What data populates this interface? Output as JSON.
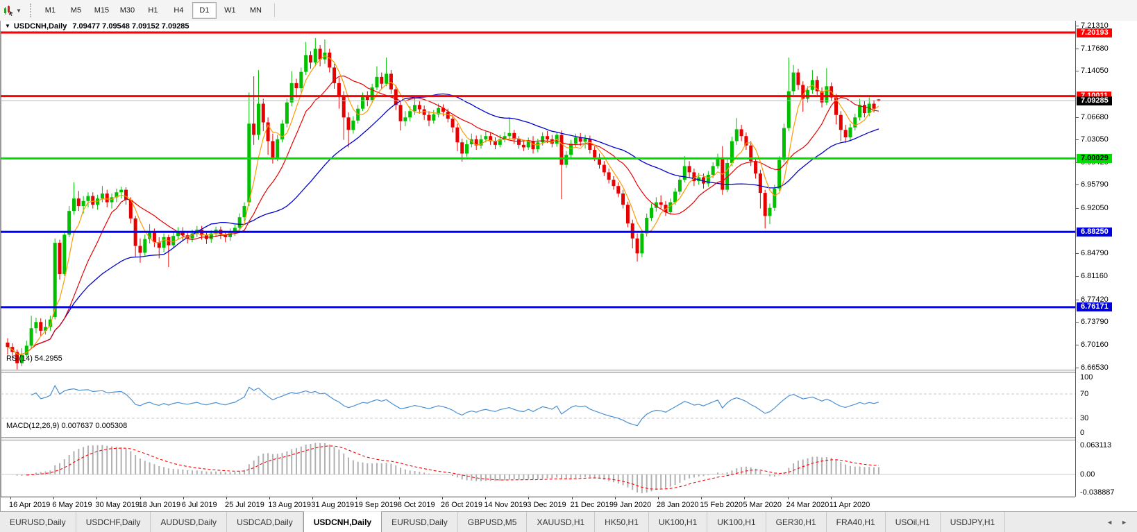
{
  "toolbar": {
    "tool_icon": "chart-cursor",
    "periods": [
      {
        "label": "M1",
        "active": false
      },
      {
        "label": "M5",
        "active": false
      },
      {
        "label": "M15",
        "active": false
      },
      {
        "label": "M30",
        "active": false
      },
      {
        "label": "H1",
        "active": false
      },
      {
        "label": "H4",
        "active": false
      },
      {
        "label": "D1",
        "active": true
      },
      {
        "label": "W1",
        "active": false
      },
      {
        "label": "MN",
        "active": false
      }
    ]
  },
  "caption": {
    "dropdown_glyph": "▼",
    "symbol": "USDCNH,Daily",
    "ohlc": "7.09477 7.09548 7.09152 7.09285"
  },
  "colors": {
    "bull": "#00c000",
    "bear": "#e60000",
    "ma_fast": "#ff9900",
    "ma_mid": "#e60000",
    "ma_slow": "#0000cc",
    "rsi_line": "#4a90d2",
    "rsi_level": "#c8c8c8",
    "macd_hist": "#b0b0b0",
    "macd_signal": "#ff0000",
    "level_red": "#ff0000",
    "level_green": "#00dd00",
    "level_blue": "#0000ff",
    "current_line": "#b8b8b8"
  },
  "price_axis": {
    "min_price": 6.655,
    "max_price": 7.2209,
    "labels": [
      "7.21310",
      "7.17680",
      "7.14050",
      "7.06680",
      "7.03050",
      "6.99420",
      "6.95790",
      "6.92050",
      "6.84790",
      "6.81160",
      "6.77420",
      "6.73790",
      "6.70160",
      "6.66530"
    ]
  },
  "badges": [
    {
      "text": "7.20193",
      "price": 7.20193,
      "bg": "#ff0000",
      "fg": "#ffffff"
    },
    {
      "text": "7.10011",
      "price": 7.10011,
      "bg": "#ff0000",
      "fg": "#ffffff"
    },
    {
      "text": "7.09285",
      "price": 7.09285,
      "bg": "#000000",
      "fg": "#ffffff"
    },
    {
      "text": "7.00029",
      "price": 7.00029,
      "bg": "#00dd00",
      "fg": "#000000"
    },
    {
      "text": "6.88250",
      "price": 6.8825,
      "bg": "#0000dd",
      "fg": "#ffffff"
    },
    {
      "text": "6.76171",
      "price": 6.76171,
      "bg": "#0000dd",
      "fg": "#ffffff"
    }
  ],
  "hlines": [
    {
      "name": "resistance-upper",
      "price": 7.20193,
      "color": "#ff0000",
      "w": 3
    },
    {
      "name": "resistance-7.10",
      "price": 7.10011,
      "color": "#ff0000",
      "w": 3
    },
    {
      "name": "current-price",
      "price": 7.09285,
      "color": "#b8b8b8",
      "w": 1
    },
    {
      "name": "pivot-7.00",
      "price": 7.00029,
      "color": "#00dd00",
      "w": 3
    },
    {
      "name": "support-6.88",
      "price": 6.8825,
      "color": "#0000ff",
      "w": 3
    },
    {
      "name": "support-6.76",
      "price": 6.76171,
      "color": "#0000ff",
      "w": 3
    }
  ],
  "rsi": {
    "label": "RSI(14) 54.2955",
    "period": 14,
    "axis_labels": [
      {
        "text": "100",
        "v": 100
      },
      {
        "text": "70",
        "v": 70
      },
      {
        "text": "30",
        "v": 30
      },
      {
        "text": "0",
        "v": 0
      }
    ],
    "dashed_levels": [
      70,
      30
    ]
  },
  "macd": {
    "label": "MACD(12,26,9) 0.007637 0.005308",
    "axis_labels": [
      {
        "text": "0.063113",
        "v": 0.063113
      },
      {
        "text": "0.00",
        "v": 0
      },
      {
        "text": "-0.038887",
        "v": -0.038887
      }
    ]
  },
  "date_labels": [
    "16 Apr 2019",
    "6 May 2019",
    "30 May 2019",
    "18 Jun 2019",
    "6 Jul 2019",
    "25 Jul 2019",
    "13 Aug 2019",
    "31 Aug 2019",
    "19 Sep 2019",
    "8 Oct 2019",
    "26 Oct 2019",
    "14 Nov 2019",
    "3 Dec 2019",
    "21 Dec 2019",
    "9 Jan 2020",
    "28 Jan 2020",
    "15 Feb 2020",
    "5 Mar 2020",
    "24 Mar 2020",
    "11 Apr 2020"
  ],
  "tabs": [
    {
      "label": "EURUSD,Daily",
      "active": false
    },
    {
      "label": "USDCHF,Daily",
      "active": false
    },
    {
      "label": "AUDUSD,Daily",
      "active": false
    },
    {
      "label": "USDCAD,Daily",
      "active": false
    },
    {
      "label": "USDCNH,Daily",
      "active": true
    },
    {
      "label": "EURUSD,Daily",
      "active": false
    },
    {
      "label": "GBPUSD,M5",
      "active": false
    },
    {
      "label": "XAUUSD,H1",
      "active": false
    },
    {
      "label": "HK50,H1",
      "active": false
    },
    {
      "label": "UK100,H1",
      "active": false
    },
    {
      "label": "UK100,H1",
      "active": false
    },
    {
      "label": "GER30,H1",
      "active": false
    },
    {
      "label": "FRA40,H1",
      "active": false
    },
    {
      "label": "USOil,H1",
      "active": false
    },
    {
      "label": "USDJPY,H1",
      "active": false
    }
  ],
  "tab_nav": {
    "left": "◄",
    "right": "►"
  },
  "chart_data": {
    "type": "candlestick-ohlc",
    "symbol": "USDCNH",
    "timeframe": "Daily",
    "current_bar": {
      "open": 7.09477,
      "high": 7.09548,
      "low": 7.09152,
      "close": 7.09285
    },
    "candles": [
      [
        6.705,
        6.712,
        6.686,
        6.698
      ],
      [
        6.698,
        6.704,
        6.678,
        6.69
      ],
      [
        6.69,
        6.694,
        6.662,
        6.672
      ],
      [
        6.672,
        6.696,
        6.667,
        6.685
      ],
      [
        6.685,
        6.708,
        6.682,
        6.7
      ],
      [
        6.7,
        6.748,
        6.695,
        6.728
      ],
      [
        6.728,
        6.745,
        6.72,
        6.738
      ],
      [
        6.738,
        6.744,
        6.716,
        6.724
      ],
      [
        6.724,
        6.742,
        6.718,
        6.73
      ],
      [
        6.73,
        6.748,
        6.724,
        6.742
      ],
      [
        6.746,
        6.872,
        6.742,
        6.865
      ],
      [
        6.865,
        6.87,
        6.806,
        6.815
      ],
      [
        6.815,
        6.884,
        6.812,
        6.878
      ],
      [
        6.878,
        6.924,
        6.874,
        6.916
      ],
      [
        6.916,
        6.962,
        6.91,
        6.936
      ],
      [
        6.936,
        6.948,
        6.916,
        6.924
      ],
      [
        6.924,
        6.94,
        6.912,
        6.932
      ],
      [
        6.932,
        6.946,
        6.922,
        6.94
      ],
      [
        6.94,
        6.946,
        6.92,
        6.926
      ],
      [
        6.926,
        6.942,
        6.918,
        6.936
      ],
      [
        6.936,
        6.956,
        6.93,
        6.944
      ],
      [
        6.944,
        6.95,
        6.922,
        6.93
      ],
      [
        6.93,
        6.944,
        6.92,
        6.938
      ],
      [
        6.938,
        6.952,
        6.93,
        6.946
      ],
      [
        6.946,
        6.955,
        6.936,
        6.95
      ],
      [
        6.95,
        6.954,
        6.926,
        6.934
      ],
      [
        6.934,
        6.938,
        6.896,
        6.904
      ],
      [
        6.904,
        6.908,
        6.842,
        6.86
      ],
      [
        6.86,
        6.872,
        6.833,
        6.849
      ],
      [
        6.849,
        6.878,
        6.844,
        6.871
      ],
      [
        6.871,
        6.895,
        6.864,
        6.882
      ],
      [
        6.882,
        6.888,
        6.858,
        6.866
      ],
      [
        6.866,
        6.874,
        6.84,
        6.857
      ],
      [
        6.857,
        6.88,
        6.85,
        6.874
      ],
      [
        6.874,
        6.878,
        6.826,
        6.861
      ],
      [
        6.861,
        6.882,
        6.856,
        6.876
      ],
      [
        6.876,
        6.89,
        6.87,
        6.884
      ],
      [
        6.884,
        6.89,
        6.868,
        6.877
      ],
      [
        6.877,
        6.884,
        6.864,
        6.872
      ],
      [
        6.872,
        6.886,
        6.866,
        6.88
      ],
      [
        6.88,
        6.892,
        6.874,
        6.886
      ],
      [
        6.886,
        6.892,
        6.87,
        6.877
      ],
      [
        6.877,
        6.883,
        6.863,
        6.871
      ],
      [
        6.871,
        6.885,
        6.865,
        6.88
      ],
      [
        6.88,
        6.891,
        6.874,
        6.886
      ],
      [
        6.886,
        6.891,
        6.871,
        6.879
      ],
      [
        6.879,
        6.884,
        6.866,
        6.874
      ],
      [
        6.874,
        6.888,
        6.868,
        6.883
      ],
      [
        6.883,
        6.894,
        6.876,
        6.889
      ],
      [
        6.889,
        6.912,
        6.884,
        6.906
      ],
      [
        6.906,
        6.93,
        6.9,
        6.924
      ],
      [
        6.93,
        7.106,
        6.924,
        7.056
      ],
      [
        7.056,
        7.132,
        7.022,
        7.038
      ],
      [
        7.038,
        7.142,
        7.03,
        7.088
      ],
      [
        7.088,
        7.096,
        7.044,
        7.058
      ],
      [
        7.058,
        7.066,
        7.006,
        7.028
      ],
      [
        7.028,
        7.04,
        6.992,
        7.0
      ],
      [
        7.0,
        7.038,
        6.996,
        7.031
      ],
      [
        7.031,
        7.062,
        7.026,
        7.056
      ],
      [
        7.056,
        7.096,
        7.05,
        7.09
      ],
      [
        7.09,
        7.14,
        7.084,
        7.121
      ],
      [
        7.121,
        7.128,
        7.098,
        7.113
      ],
      [
        7.113,
        7.146,
        7.106,
        7.139
      ],
      [
        7.139,
        7.187,
        7.134,
        7.166
      ],
      [
        7.166,
        7.172,
        7.144,
        7.154
      ],
      [
        7.154,
        7.193,
        7.148,
        7.176
      ],
      [
        7.176,
        7.182,
        7.148,
        7.159
      ],
      [
        7.159,
        7.191,
        7.152,
        7.17
      ],
      [
        7.17,
        7.176,
        7.138,
        7.146
      ],
      [
        7.146,
        7.152,
        7.112,
        7.121
      ],
      [
        7.121,
        7.13,
        7.08,
        7.101
      ],
      [
        7.101,
        7.108,
        7.03,
        7.066
      ],
      [
        7.066,
        7.074,
        7.018,
        7.046
      ],
      [
        7.046,
        7.068,
        7.04,
        7.061
      ],
      [
        7.061,
        7.086,
        7.056,
        7.08
      ],
      [
        7.08,
        7.106,
        7.076,
        7.1
      ],
      [
        7.1,
        7.108,
        7.084,
        7.094
      ],
      [
        7.094,
        7.12,
        7.09,
        7.114
      ],
      [
        7.114,
        7.148,
        7.11,
        7.131
      ],
      [
        7.131,
        7.138,
        7.112,
        7.12
      ],
      [
        7.12,
        7.162,
        7.116,
        7.136
      ],
      [
        7.136,
        7.142,
        7.104,
        7.111
      ],
      [
        7.111,
        7.118,
        7.078,
        7.086
      ],
      [
        7.086,
        7.092,
        7.045,
        7.06
      ],
      [
        7.06,
        7.076,
        7.052,
        7.066
      ],
      [
        7.066,
        7.084,
        7.06,
        7.076
      ],
      [
        7.076,
        7.101,
        7.07,
        7.086
      ],
      [
        7.086,
        7.092,
        7.072,
        7.079
      ],
      [
        7.079,
        7.085,
        7.062,
        7.07
      ],
      [
        7.07,
        7.076,
        7.052,
        7.061
      ],
      [
        7.061,
        7.078,
        7.056,
        7.071
      ],
      [
        7.071,
        7.088,
        7.066,
        7.081
      ],
      [
        7.081,
        7.087,
        7.068,
        7.075
      ],
      [
        7.075,
        7.08,
        7.058,
        7.064
      ],
      [
        7.064,
        7.07,
        7.042,
        7.05
      ],
      [
        7.05,
        7.056,
        7.012,
        7.026
      ],
      [
        7.026,
        7.032,
        6.995,
        7.008
      ],
      [
        7.008,
        7.03,
        7.003,
        7.023
      ],
      [
        7.023,
        7.04,
        7.018,
        7.031
      ],
      [
        7.031,
        7.037,
        7.014,
        7.021
      ],
      [
        7.021,
        7.038,
        7.016,
        7.031
      ],
      [
        7.031,
        7.044,
        7.026,
        7.036
      ],
      [
        7.036,
        7.042,
        7.022,
        7.028
      ],
      [
        7.028,
        7.034,
        7.015,
        7.022
      ],
      [
        7.022,
        7.038,
        7.018,
        7.031
      ],
      [
        7.031,
        7.043,
        7.026,
        7.036
      ],
      [
        7.036,
        7.066,
        7.031,
        7.041
      ],
      [
        7.041,
        7.046,
        7.024,
        7.031
      ],
      [
        7.031,
        7.036,
        7.016,
        7.022
      ],
      [
        7.022,
        7.03,
        7.012,
        7.018
      ],
      [
        7.018,
        7.034,
        7.014,
        7.028
      ],
      [
        7.028,
        7.036,
        7.008,
        7.015
      ],
      [
        7.015,
        7.032,
        7.01,
        7.026
      ],
      [
        7.026,
        7.042,
        7.021,
        7.036
      ],
      [
        7.036,
        7.044,
        7.025,
        7.031
      ],
      [
        7.031,
        7.038,
        7.018,
        7.024
      ],
      [
        7.024,
        7.042,
        7.019,
        7.038
      ],
      [
        7.038,
        7.045,
        6.935,
        6.99
      ],
      [
        6.99,
        7.012,
        6.985,
        7.006
      ],
      [
        7.006,
        7.03,
        7.001,
        7.024
      ],
      [
        7.024,
        7.04,
        7.019,
        7.034
      ],
      [
        7.034,
        7.041,
        7.02,
        7.027
      ],
      [
        7.027,
        7.038,
        7.016,
        7.032
      ],
      [
        7.032,
        7.037,
        7.008,
        7.014
      ],
      [
        7.014,
        7.02,
        6.996,
        7.002
      ],
      [
        7.002,
        7.008,
        6.984,
        6.99
      ],
      [
        6.99,
        6.996,
        6.972,
        6.978
      ],
      [
        6.978,
        6.984,
        6.96,
        6.966
      ],
      [
        6.966,
        6.972,
        6.95,
        6.956
      ],
      [
        6.956,
        6.962,
        6.938,
        6.944
      ],
      [
        6.944,
        6.95,
        6.92,
        6.926
      ],
      [
        6.926,
        6.931,
        6.89,
        6.896
      ],
      [
        6.896,
        6.902,
        6.856,
        6.872
      ],
      [
        6.872,
        6.88,
        6.835,
        6.848
      ],
      [
        6.848,
        6.886,
        6.842,
        6.88
      ],
      [
        6.88,
        6.912,
        6.875,
        6.905
      ],
      [
        6.905,
        6.928,
        6.9,
        6.921
      ],
      [
        6.921,
        6.938,
        6.915,
        6.93
      ],
      [
        6.93,
        6.941,
        6.92,
        6.926
      ],
      [
        6.926,
        6.932,
        6.908,
        6.914
      ],
      [
        6.914,
        6.936,
        6.91,
        6.93
      ],
      [
        6.93,
        6.953,
        6.926,
        6.947
      ],
      [
        6.947,
        6.972,
        6.942,
        6.966
      ],
      [
        6.966,
        7.004,
        6.962,
        6.988
      ],
      [
        6.988,
        6.996,
        6.97,
        6.978
      ],
      [
        6.978,
        6.984,
        6.956,
        6.964
      ],
      [
        6.964,
        6.977,
        6.958,
        6.97
      ],
      [
        6.97,
        6.976,
        6.952,
        6.96
      ],
      [
        6.96,
        6.98,
        6.955,
        6.974
      ],
      [
        6.974,
        6.994,
        6.969,
        6.988
      ],
      [
        6.988,
        7.008,
        6.984,
        7.002
      ],
      [
        7.002,
        7.02,
        6.942,
        6.95
      ],
      [
        6.95,
        6.999,
        6.946,
        6.993
      ],
      [
        6.993,
        7.035,
        6.988,
        7.028
      ],
      [
        7.028,
        7.065,
        7.022,
        7.047
      ],
      [
        7.047,
        7.054,
        7.028,
        7.036
      ],
      [
        7.036,
        7.042,
        7.014,
        7.021
      ],
      [
        7.021,
        7.028,
        6.988,
        6.996
      ],
      [
        6.996,
        7.002,
        6.968,
        6.976
      ],
      [
        6.976,
        6.982,
        6.92,
        6.945
      ],
      [
        6.945,
        6.95,
        6.888,
        6.908
      ],
      [
        6.908,
        6.928,
        6.895,
        6.921
      ],
      [
        6.921,
        6.958,
        6.916,
        6.952
      ],
      [
        6.952,
        7.004,
        6.948,
        6.998
      ],
      [
        6.998,
        7.056,
        6.994,
        7.049
      ],
      [
        7.049,
        7.162,
        7.044,
        7.108
      ],
      [
        7.108,
        7.15,
        7.102,
        7.138
      ],
      [
        7.138,
        7.144,
        7.11,
        7.118
      ],
      [
        7.118,
        7.124,
        7.075,
        7.096
      ],
      [
        7.096,
        7.116,
        7.09,
        7.11
      ],
      [
        7.11,
        7.142,
        7.104,
        7.126
      ],
      [
        7.126,
        7.132,
        7.102,
        7.108
      ],
      [
        7.108,
        7.114,
        7.082,
        7.09
      ],
      [
        7.09,
        7.145,
        7.086,
        7.116
      ],
      [
        7.116,
        7.122,
        7.092,
        7.098
      ],
      [
        7.098,
        7.104,
        7.055,
        7.07
      ],
      [
        7.07,
        7.076,
        7.028,
        7.046
      ],
      [
        7.046,
        7.054,
        7.025,
        7.034
      ],
      [
        7.034,
        7.056,
        7.029,
        7.05
      ],
      [
        7.05,
        7.072,
        7.045,
        7.066
      ],
      [
        7.066,
        7.096,
        7.061,
        7.086
      ],
      [
        7.086,
        7.092,
        7.066,
        7.073
      ],
      [
        7.073,
        7.098,
        7.068,
        7.088
      ],
      [
        7.088,
        7.094,
        7.074,
        7.08
      ],
      [
        7.0948,
        7.0955,
        7.0915,
        7.0929
      ]
    ]
  }
}
